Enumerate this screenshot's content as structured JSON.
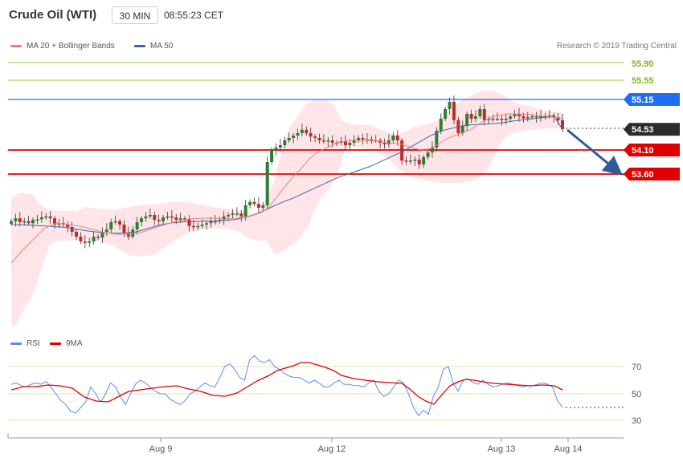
{
  "header": {
    "instrument": "Crude Oil (WTI)",
    "timeframe": "30 MIN",
    "time": "08:55:23 CET"
  },
  "legend": {
    "ma20": "MA 20 + Bollinger Bands",
    "ma50": "MA 50",
    "ma20_color": "#f08080",
    "ma50_color": "#3a6aa8"
  },
  "copyright": "Research © 2019 Trading Central",
  "rsi_legend": {
    "rsi": "RSI",
    "ma9": "9MA",
    "rsi_color": "#5b8def",
    "ma9_color": "#e00000"
  },
  "levels": [
    {
      "value": "55.90",
      "kind": "green"
    },
    {
      "value": "55.55",
      "kind": "green"
    },
    {
      "value": "55.15",
      "kind": "blue"
    },
    {
      "value": "54.53",
      "kind": "current"
    },
    {
      "value": "54.10",
      "kind": "red"
    },
    {
      "value": "53.60",
      "kind": "red"
    }
  ],
  "rsi_ticks": [
    "70",
    "50",
    "30"
  ],
  "x_labels": [
    "Aug 9",
    "Aug 12",
    "Aug 13",
    "Aug 14"
  ],
  "chart_data": {
    "type": "candlestick",
    "x_labels": [
      "Aug 9",
      "Aug 12",
      "Aug 13",
      "Aug 14"
    ],
    "price_levels": [
      55.9,
      55.55,
      55.15,
      54.53,
      54.1,
      53.6
    ],
    "forecast": {
      "from": 54.53,
      "to": 53.6
    },
    "close": [
      52.62,
      52.68,
      52.6,
      52.62,
      52.58,
      52.65,
      52.66,
      52.7,
      52.72,
      52.68,
      52.55,
      52.58,
      52.55,
      52.5,
      52.4,
      52.3,
      52.2,
      52.17,
      52.2,
      52.3,
      52.28,
      52.4,
      52.45,
      52.6,
      52.62,
      52.55,
      52.38,
      52.3,
      52.45,
      52.6,
      52.68,
      52.72,
      52.75,
      52.65,
      52.62,
      52.7,
      52.72,
      52.7,
      52.65,
      52.68,
      52.66,
      52.52,
      52.5,
      52.52,
      52.55,
      52.58,
      52.62,
      52.62,
      52.65,
      52.72,
      52.75,
      52.78,
      52.78,
      52.72,
      52.95,
      53.02,
      52.98,
      52.9,
      52.95,
      53.85,
      54.1,
      54.15,
      54.2,
      54.3,
      54.35,
      54.4,
      54.45,
      54.52,
      54.45,
      54.38,
      54.35,
      54.3,
      54.28,
      54.3,
      54.25,
      54.25,
      54.28,
      54.2,
      54.25,
      54.3,
      54.35,
      54.32,
      54.32,
      54.3,
      54.3,
      54.25,
      54.22,
      54.3,
      54.4,
      54.3,
      53.88,
      53.86,
      53.88,
      53.9,
      53.8,
      53.95,
      54.05,
      54.15,
      54.5,
      54.75,
      54.95,
      55.1,
      54.72,
      54.45,
      54.6,
      54.85,
      54.75,
      54.8,
      54.95,
      54.72,
      54.75,
      54.75,
      54.75,
      54.72,
      54.75,
      54.8,
      54.84,
      54.8,
      54.76,
      54.78,
      54.8,
      54.78,
      54.8,
      54.8,
      54.82,
      54.78,
      54.72,
      54.53
    ],
    "ma50": [
      52.55,
      52.55,
      52.54,
      52.53,
      52.52,
      52.51,
      52.5,
      52.48,
      52.45,
      52.42,
      52.4,
      52.38,
      52.37,
      52.37,
      52.38,
      52.4,
      52.45,
      52.5,
      52.55,
      52.58,
      52.6,
      52.61,
      52.61,
      52.62,
      52.62,
      52.63,
      52.64,
      52.66,
      52.7,
      52.75,
      52.82,
      52.9,
      52.98,
      53.05,
      53.12,
      53.2,
      53.28,
      53.36,
      53.44,
      53.52,
      53.58,
      53.64,
      53.7,
      53.76,
      53.84,
      53.92,
      54.0,
      54.08,
      54.18,
      54.28,
      54.38,
      54.46,
      54.52,
      54.56,
      54.6,
      54.62,
      54.63,
      54.64,
      54.65,
      54.67,
      54.7,
      54.72,
      54.74,
      54.76,
      54.78,
      54.8,
      54.53
    ],
    "rsi": [
      57,
      58,
      56,
      55,
      57,
      58,
      57,
      59,
      55,
      50,
      45,
      42,
      37,
      36,
      40,
      44,
      55,
      50,
      44,
      50,
      58,
      55,
      48,
      42,
      50,
      57,
      60,
      58,
      55,
      52,
      50,
      50,
      46,
      44,
      42,
      45,
      50,
      52,
      55,
      58,
      56,
      55,
      62,
      70,
      72,
      68,
      62,
      60,
      75,
      78,
      74,
      73,
      75,
      70,
      68,
      65,
      63,
      62,
      62,
      60,
      58,
      60,
      58,
      55,
      55,
      58,
      60,
      57,
      57,
      56,
      56,
      55,
      58,
      60,
      52,
      48,
      50,
      55,
      60,
      58,
      50,
      40,
      34,
      38,
      35,
      48,
      55,
      68,
      70,
      58,
      52,
      60,
      61,
      58,
      57,
      60,
      57,
      55,
      56,
      57,
      58,
      57,
      56,
      55,
      56,
      56,
      57,
      58,
      57,
      55,
      45,
      40
    ]
  }
}
